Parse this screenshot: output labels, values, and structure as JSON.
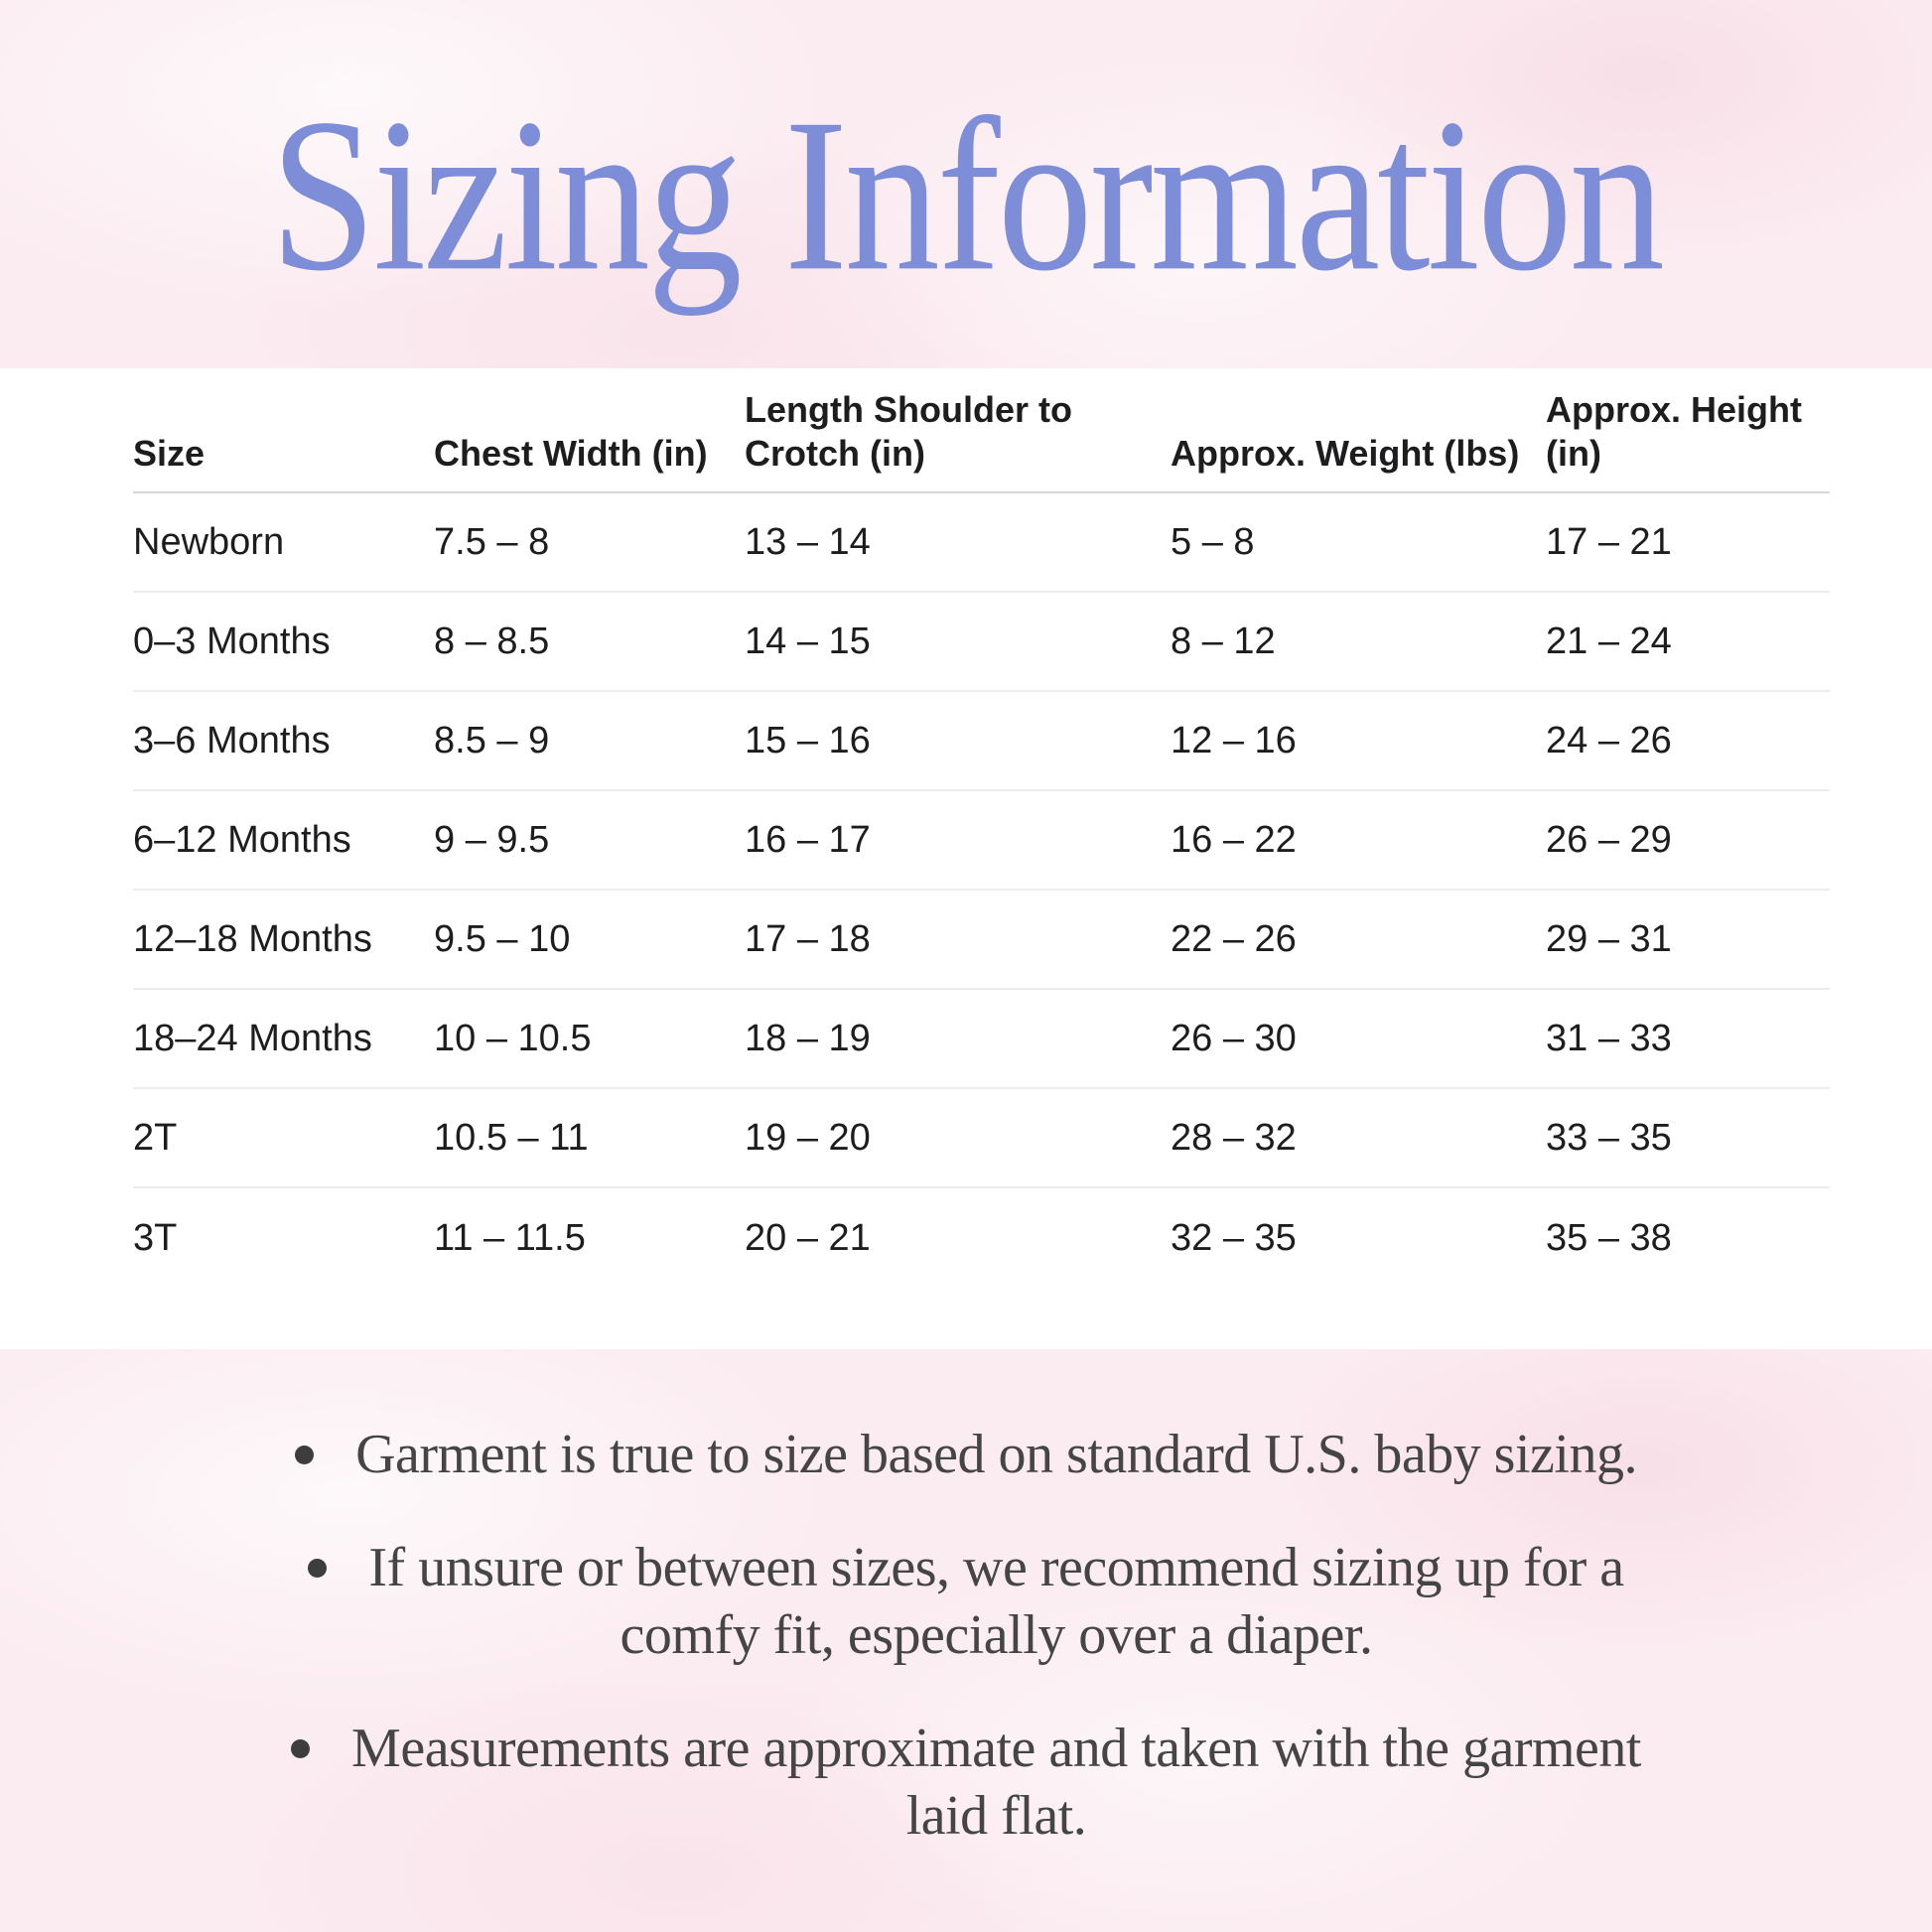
{
  "title": "Sizing Information",
  "colors": {
    "accent_periwinkle": "#7e8dd8",
    "background_pink": "#fbecf1",
    "table_text": "#1d1d1f",
    "note_text": "#454545"
  },
  "table": {
    "columns": [
      "Size",
      "Chest Width (in)",
      "Length Shoulder to Crotch (in)",
      "Approx. Weight (lbs)",
      "Approx. Height (in)"
    ],
    "rows": [
      [
        "Newborn",
        "7.5 – 8",
        "13 – 14",
        "5 – 8",
        "17 – 21"
      ],
      [
        "0–3 Months",
        "8 – 8.5",
        "14 – 15",
        "8 – 12",
        "21 – 24"
      ],
      [
        "3–6 Months",
        "8.5 – 9",
        "15 – 16",
        "12 – 16",
        "24 – 26"
      ],
      [
        "6–12 Months",
        "9 – 9.5",
        "16 – 17",
        "16 – 22",
        "26 – 29"
      ],
      [
        "12–18 Months",
        "9.5 – 10",
        "17 – 18",
        "22 – 26",
        "29 – 31"
      ],
      [
        "18–24 Months",
        "10 – 10.5",
        "18 – 19",
        "26 – 30",
        "31 – 33"
      ],
      [
        "2T",
        "10.5 – 11",
        "19 – 20",
        "28 – 32",
        "33 – 35"
      ],
      [
        "3T",
        "11 – 11.5",
        "20 – 21",
        "32 – 35",
        "35 – 38"
      ]
    ]
  },
  "notes": [
    {
      "lines": [
        "Garment is true to size based on standard U.S. baby sizing."
      ]
    },
    {
      "lines": [
        "If unsure or between sizes, we recommend sizing up for a",
        "comfy fit, especially over a diaper."
      ]
    },
    {
      "lines": [
        "Measurements are approximate and taken with the garment",
        "laid flat."
      ]
    }
  ]
}
